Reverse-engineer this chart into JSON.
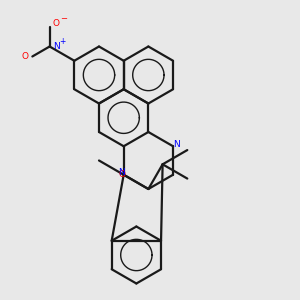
{
  "background_color": "#e8e8e8",
  "bond_color": "#1a1a1a",
  "N_color": "#0000ff",
  "O_color": "#ff0000",
  "bond_lw": 1.6,
  "figsize": [
    3.0,
    3.0
  ],
  "dpi": 100,
  "xlim": [
    0,
    10
  ],
  "ylim": [
    0,
    10
  ]
}
